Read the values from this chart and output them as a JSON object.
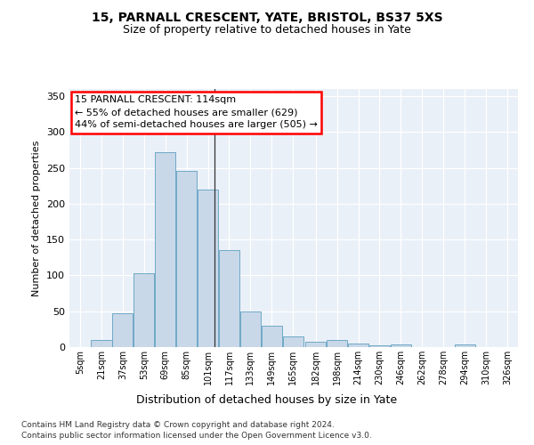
{
  "title1": "15, PARNALL CRESCENT, YATE, BRISTOL, BS37 5XS",
  "title2": "Size of property relative to detached houses in Yate",
  "xlabel": "Distribution of detached houses by size in Yate",
  "ylabel": "Number of detached properties",
  "footnote1": "Contains HM Land Registry data © Crown copyright and database right 2024.",
  "footnote2": "Contains public sector information licensed under the Open Government Licence v3.0.",
  "annotation_title": "15 PARNALL CRESCENT: 114sqm",
  "annotation_line1": "← 55% of detached houses are smaller (629)",
  "annotation_line2": "44% of semi-detached houses are larger (505) →",
  "property_size": 114,
  "bar_labels": [
    "5sqm",
    "21sqm",
    "37sqm",
    "53sqm",
    "69sqm",
    "85sqm",
    "101sqm",
    "117sqm",
    "133sqm",
    "149sqm",
    "165sqm",
    "182sqm",
    "198sqm",
    "214sqm",
    "230sqm",
    "246sqm",
    "262sqm",
    "278sqm",
    "294sqm",
    "310sqm",
    "326sqm"
  ],
  "bar_values": [
    0,
    10,
    47,
    103,
    272,
    246,
    220,
    135,
    50,
    30,
    15,
    8,
    10,
    5,
    3,
    4,
    0,
    0,
    4,
    0,
    0
  ],
  "bin_edges": [
    5,
    21,
    37,
    53,
    69,
    85,
    101,
    117,
    133,
    149,
    165,
    182,
    198,
    214,
    230,
    246,
    262,
    278,
    294,
    310,
    326,
    342
  ],
  "bar_color": "#c8d8e8",
  "bar_edge_color": "#5f9fc0",
  "vline_color": "#333333",
  "bg_color": "#eaf0f8",
  "ylim": [
    0,
    360
  ],
  "yticks": [
    0,
    50,
    100,
    150,
    200,
    250,
    300,
    350
  ],
  "title1_fontsize": 10,
  "title2_fontsize": 9,
  "ylabel_fontsize": 8,
  "xlabel_fontsize": 9,
  "tick_fontsize": 8,
  "xtick_fontsize": 7,
  "footnote_fontsize": 6.5,
  "annot_fontsize": 8
}
